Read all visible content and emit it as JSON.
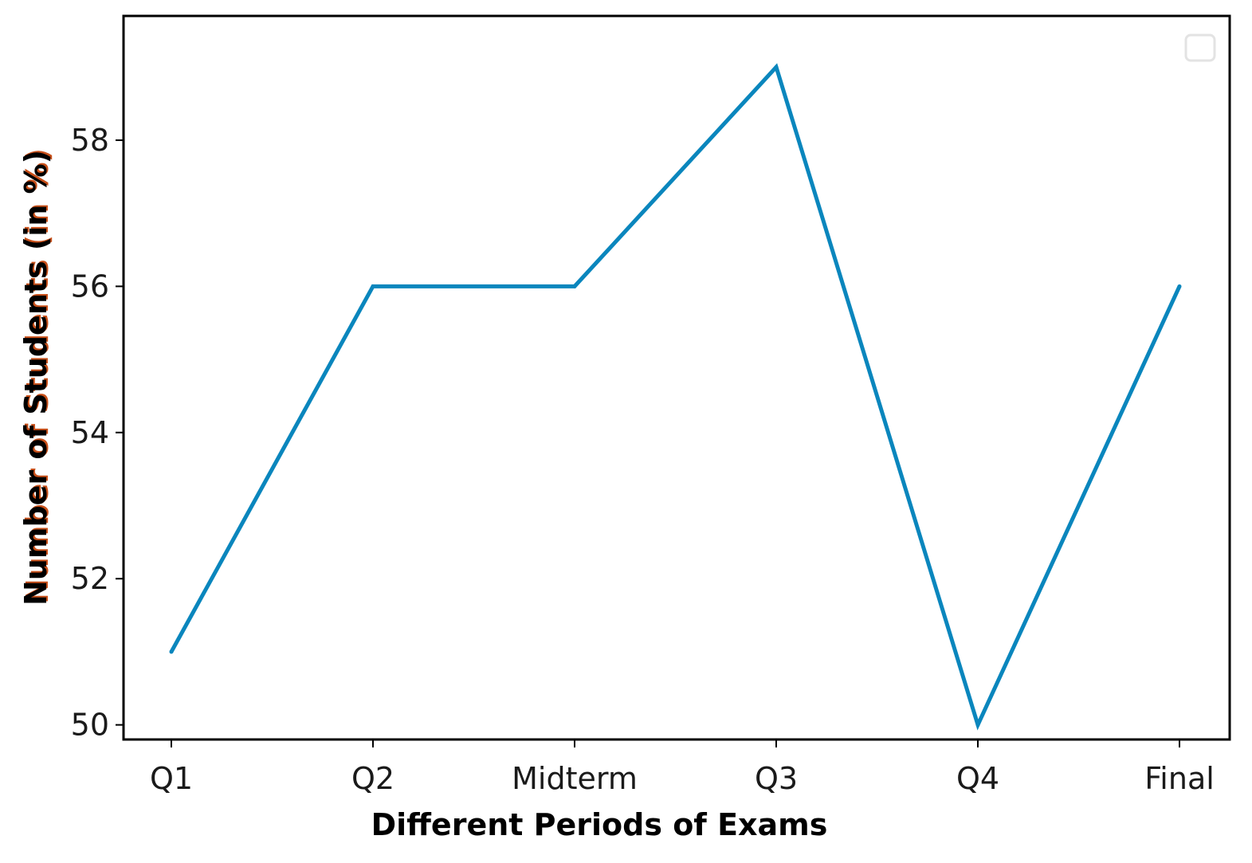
{
  "chart_data": {
    "type": "line",
    "categories": [
      "Q1",
      "Q2",
      "Midterm",
      "Q3",
      "Q4",
      "Final"
    ],
    "series": [
      {
        "values": [
          51,
          56,
          56,
          59,
          50,
          56
        ],
        "color": "#0a86bd"
      }
    ],
    "title": "",
    "xlabel": "Different Periods of Exams",
    "ylabel": "Number of Students (in %)",
    "ylim": [
      49.8,
      59.7
    ],
    "yticks": [
      50,
      52,
      54,
      56,
      58
    ],
    "grid": false,
    "legend": {
      "placement": "top-right",
      "entries": []
    },
    "colors": {
      "line": "#0a86bd",
      "axis": "#000000",
      "ylabel_shadow": "#c8501a"
    }
  }
}
